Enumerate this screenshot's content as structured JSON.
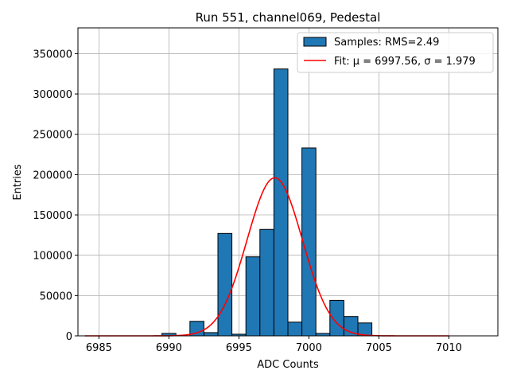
{
  "chart_data": {
    "type": "bar",
    "title": "Run 551, channel069, Pedestal",
    "xlabel": "ADC Counts",
    "ylabel": "Entries",
    "xlim": [
      6983.5,
      7013.5
    ],
    "ylim": [
      0,
      382000
    ],
    "xticks": [
      6985,
      6990,
      6995,
      7000,
      7005,
      7010
    ],
    "yticks": [
      0,
      50000,
      100000,
      150000,
      200000,
      250000,
      300000,
      350000
    ],
    "grid": true,
    "legend_position": "top-right",
    "histogram": {
      "name": "Samples: RMS=2.49",
      "color": "#1f77b4",
      "bins": [
        {
          "x0": 6989.5,
          "x1": 6990.5,
          "value": 3000
        },
        {
          "x0": 6991.5,
          "x1": 6992.5,
          "value": 18000
        },
        {
          "x0": 6992.5,
          "x1": 6993.5,
          "value": 4000
        },
        {
          "x0": 6993.5,
          "x1": 6994.5,
          "value": 127000
        },
        {
          "x0": 6994.5,
          "x1": 6995.5,
          "value": 2000
        },
        {
          "x0": 6995.5,
          "x1": 6996.5,
          "value": 98000
        },
        {
          "x0": 6996.5,
          "x1": 6997.5,
          "value": 132000
        },
        {
          "x0": 6997.5,
          "x1": 6998.5,
          "value": 331000
        },
        {
          "x0": 6998.5,
          "x1": 6999.5,
          "value": 17000
        },
        {
          "x0": 6999.5,
          "x1": 7000.5,
          "value": 233000
        },
        {
          "x0": 7000.5,
          "x1": 7001.5,
          "value": 3000
        },
        {
          "x0": 7001.5,
          "x1": 7002.5,
          "value": 44000
        },
        {
          "x0": 7002.5,
          "x1": 7003.5,
          "value": 24000
        },
        {
          "x0": 7003.5,
          "x1": 7004.5,
          "value": 16000
        }
      ]
    },
    "fit": {
      "name": "Fit: μ = 6997.56, σ = 1.979",
      "color": "#ff0000",
      "mu": 6997.56,
      "sigma": 1.979,
      "amplitude": 196000,
      "x_range": [
        6984,
        7010
      ]
    }
  }
}
